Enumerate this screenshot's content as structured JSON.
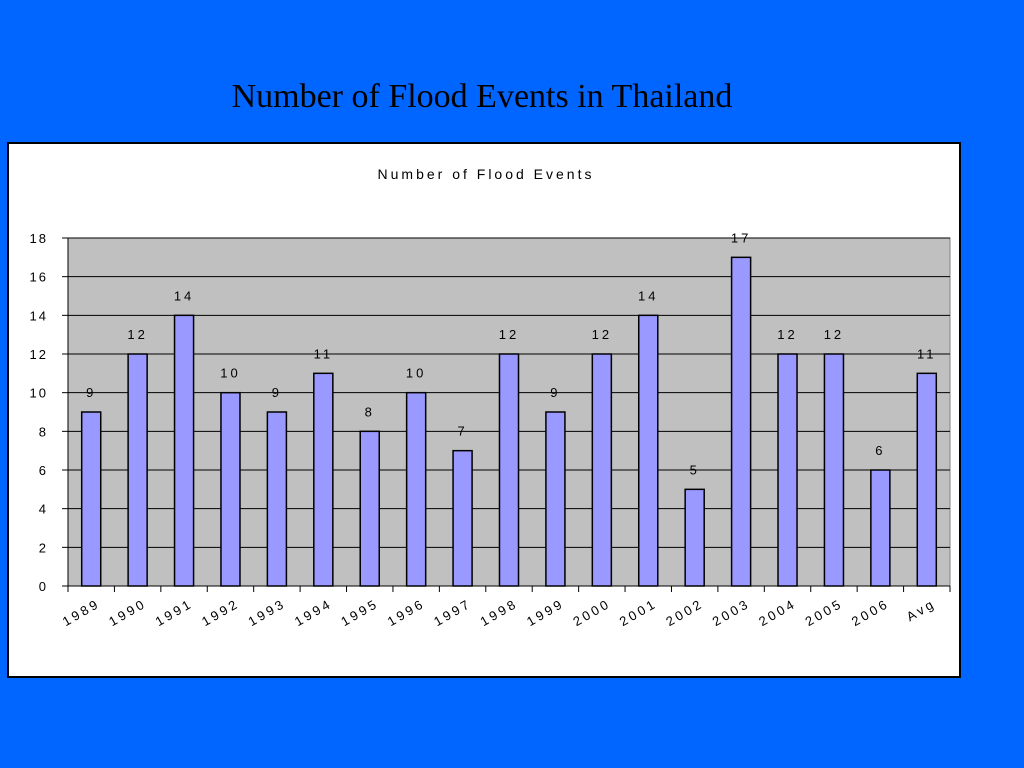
{
  "slide": {
    "title": "Number of Flood Events in Thailand"
  },
  "colors": {
    "background": "#0066ff",
    "panel": "#ffffff",
    "plot_area": "#c0c0c0",
    "bar_fill": "#9999ff",
    "bar_stroke": "#000000"
  },
  "chart_data": {
    "type": "bar",
    "title": "Number of Flood Events",
    "xlabel": "",
    "ylabel": "",
    "categories": [
      "1989",
      "1990",
      "1991",
      "1992",
      "1993",
      "1994",
      "1995",
      "1996",
      "1997",
      "1998",
      "1999",
      "2000",
      "2001",
      "2002",
      "2003",
      "2004",
      "2005",
      "2006",
      "Avg"
    ],
    "values": [
      9,
      12,
      14,
      10,
      9,
      11,
      8,
      10,
      7,
      12,
      9,
      12,
      14,
      5,
      17,
      12,
      12,
      6,
      11
    ],
    "ylim": [
      0,
      18
    ],
    "yticks": [
      0,
      2,
      4,
      6,
      8,
      10,
      12,
      14,
      16,
      18
    ],
    "grid": true,
    "data_labels": true,
    "legend": "none"
  }
}
